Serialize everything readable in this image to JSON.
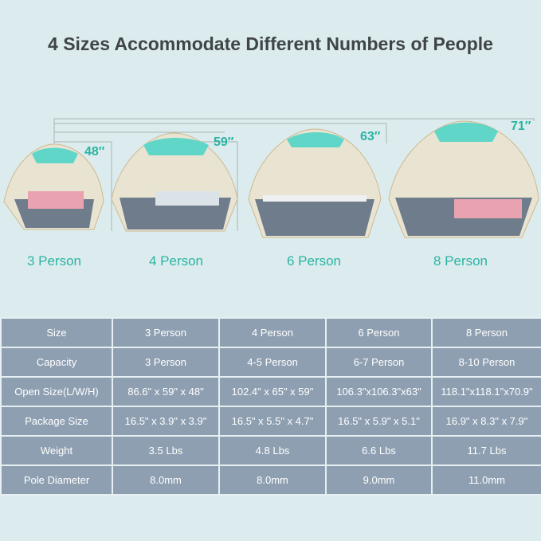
{
  "title": "4 Sizes Accommodate Different Numbers of People",
  "tents": [
    {
      "label": "3 Person",
      "height": "48″"
    },
    {
      "label": "4 Person",
      "height": "59″"
    },
    {
      "label": "6 Person",
      "height": "63″"
    },
    {
      "label": "8 Person",
      "height": "71″"
    }
  ],
  "colors": {
    "accent": "#2ab3a3",
    "table_bg": "#8e9fb1",
    "background": "#dcecee"
  },
  "table": {
    "rows": [
      [
        "Size",
        "3 Person",
        "4 Person",
        "6 Person",
        "8 Person"
      ],
      [
        "Capacity",
        "3 Person",
        "4-5 Person",
        "6-7 Person",
        "8-10 Person"
      ],
      [
        "Open Size(L/W/H)",
        "86.6\" x 59\" x 48\"",
        "102.4\" x 65\" x 59\"",
        "106.3\"x106.3\"x63\"",
        "118.1\"x118.1\"x70.9\""
      ],
      [
        "Package Size",
        "16.5\" x 3.9\" x 3.9\"",
        "16.5\" x 5.5\" x 4.7\"",
        "16.5\" x 5.9\" x 5.1\"",
        "16.9\" x 8.3\" x 7.9\""
      ],
      [
        "Weight",
        "3.5 Lbs",
        "4.8 Lbs",
        "6.6 Lbs",
        "11.7 Lbs"
      ],
      [
        "Pole Diameter",
        "8.0mm",
        "8.0mm",
        "9.0mm",
        "11.0mm"
      ]
    ]
  }
}
